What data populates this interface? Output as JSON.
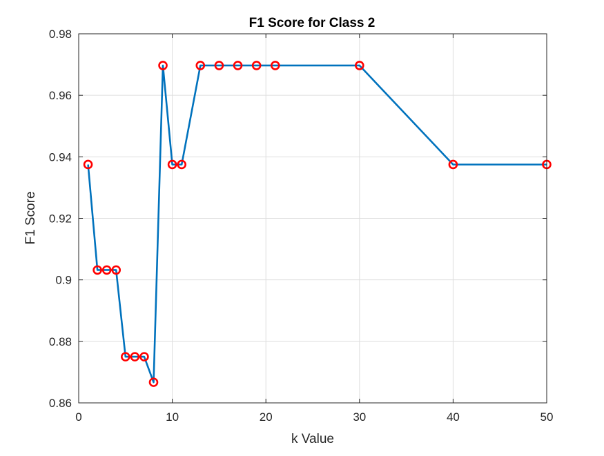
{
  "chart_data": {
    "type": "line",
    "title": "F1 Score for Class 2",
    "xlabel": "k Value",
    "ylabel": "F1 Score",
    "xlim": [
      0,
      50
    ],
    "ylim": [
      0.86,
      0.98
    ],
    "xticks": [
      0,
      10,
      20,
      30,
      40,
      50
    ],
    "xtick_labels": [
      "0",
      "10",
      "20",
      "30",
      "40",
      "50"
    ],
    "yticks": [
      0.86,
      0.88,
      0.9,
      0.92,
      0.94,
      0.96,
      0.98
    ],
    "ytick_labels": [
      "0.86",
      "0.88",
      "0.9",
      "0.92",
      "0.94",
      "0.96",
      "0.98"
    ],
    "grid": true,
    "series": [
      {
        "line_color": "#0072BD",
        "marker": "circle",
        "marker_color": "#FF0000",
        "x": [
          1,
          2,
          3,
          4,
          5,
          6,
          7,
          8,
          9,
          10,
          11,
          13,
          15,
          17,
          19,
          21,
          30,
          40,
          50
        ],
        "y": [
          0.9375,
          0.9032,
          0.9032,
          0.9032,
          0.875,
          0.875,
          0.875,
          0.8667,
          0.9697,
          0.9375,
          0.9375,
          0.9697,
          0.9697,
          0.9697,
          0.9697,
          0.9697,
          0.9697,
          0.9375,
          0.9375
        ]
      }
    ]
  }
}
